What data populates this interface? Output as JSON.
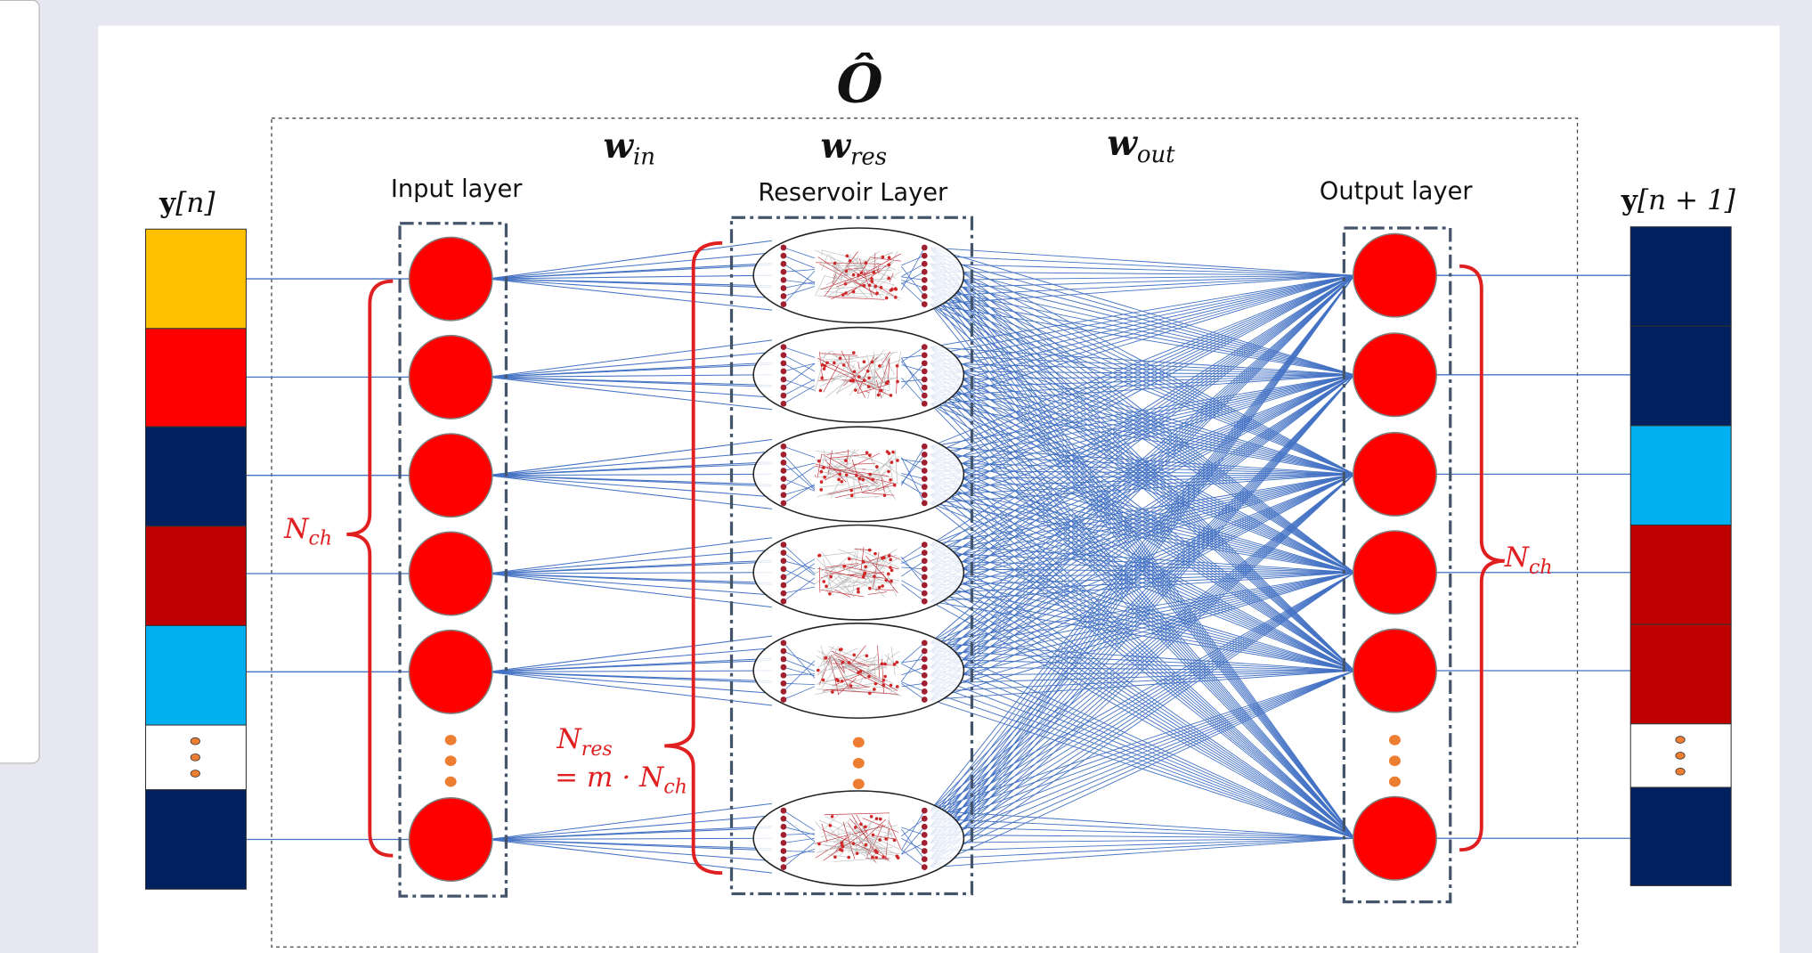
{
  "header": {
    "symbol": "Ô"
  },
  "weights": {
    "w_in": {
      "base": "w",
      "sub": "in"
    },
    "w_res": {
      "base": "w",
      "sub": "res"
    },
    "w_out": {
      "base": "w",
      "sub": "out"
    }
  },
  "layers": {
    "input": "Input layer",
    "reservoir": "Reservoir Layer",
    "output": "Output layer"
  },
  "vectors": {
    "input": {
      "base": "y",
      "arg": "[n]"
    },
    "output": {
      "base": "y",
      "arg": "[n + 1]"
    }
  },
  "annotations": {
    "n_ch_left": {
      "base": "N",
      "sub": "ch"
    },
    "n_ch_right": {
      "base": "N",
      "sub": "ch"
    },
    "n_res": {
      "base": "N",
      "sub": "res"
    },
    "n_res_eq": {
      "prefix": "= m · ",
      "base": "N",
      "sub": "ch"
    }
  }
}
